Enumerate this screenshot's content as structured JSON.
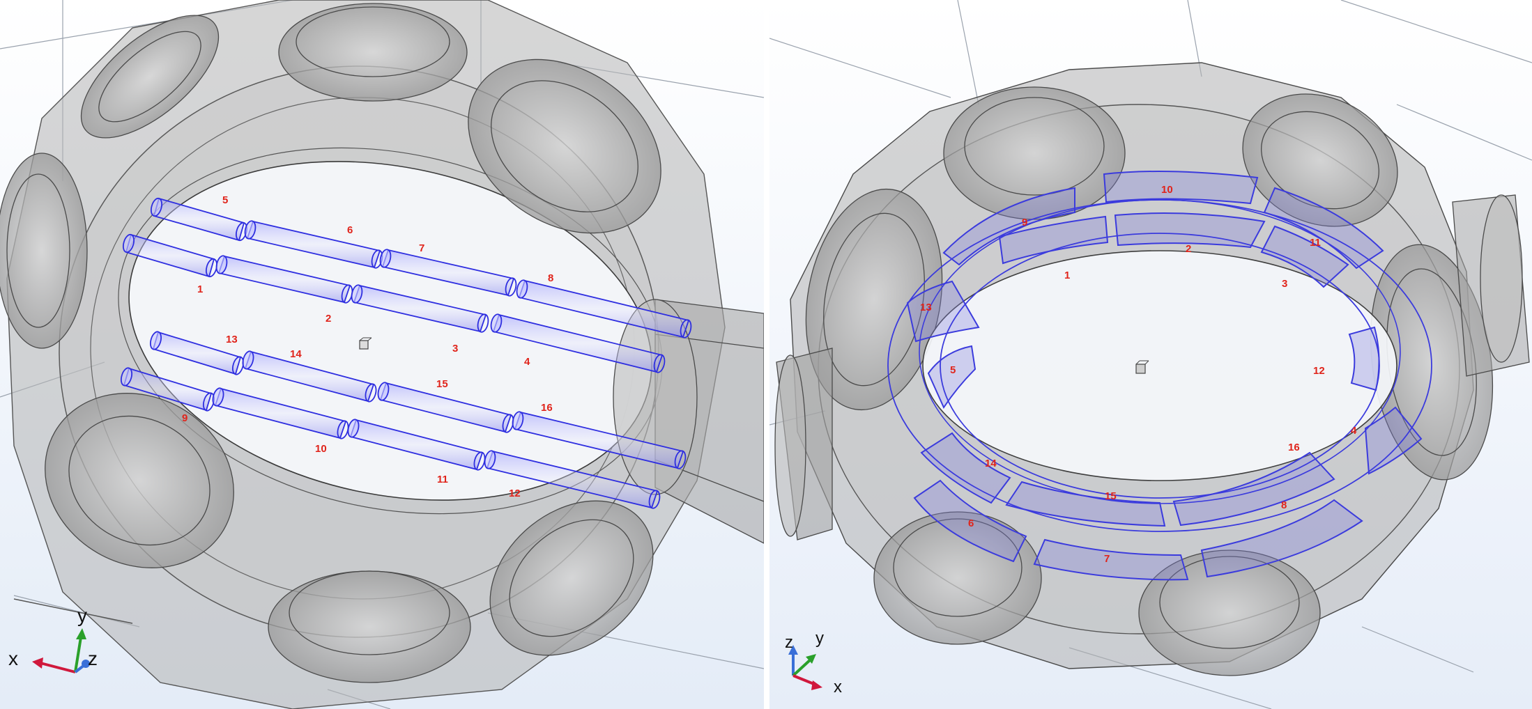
{
  "left_view": {
    "rod_labels": [
      "1",
      "2",
      "3",
      "4",
      "5",
      "6",
      "7",
      "8",
      "9",
      "10",
      "11",
      "12",
      "13",
      "14",
      "15",
      "16"
    ],
    "triad": {
      "x": "x",
      "y": "y",
      "z": "z"
    }
  },
  "right_view": {
    "segment_labels": [
      "1",
      "2",
      "3",
      "4",
      "5",
      "6",
      "7",
      "8",
      "9",
      "10",
      "11",
      "12",
      "13",
      "14",
      "15",
      "16"
    ],
    "triad": {
      "x": "x",
      "y": "y",
      "z": "z"
    }
  },
  "colors": {
    "highlight": "#3b3bdd",
    "label": "#e0241b",
    "background": "#eef3fb",
    "housing": "#a8a8a8",
    "axis_x": "#d0183c",
    "axis_y": "#2aa02a",
    "axis_z": "#3a6fd8"
  }
}
